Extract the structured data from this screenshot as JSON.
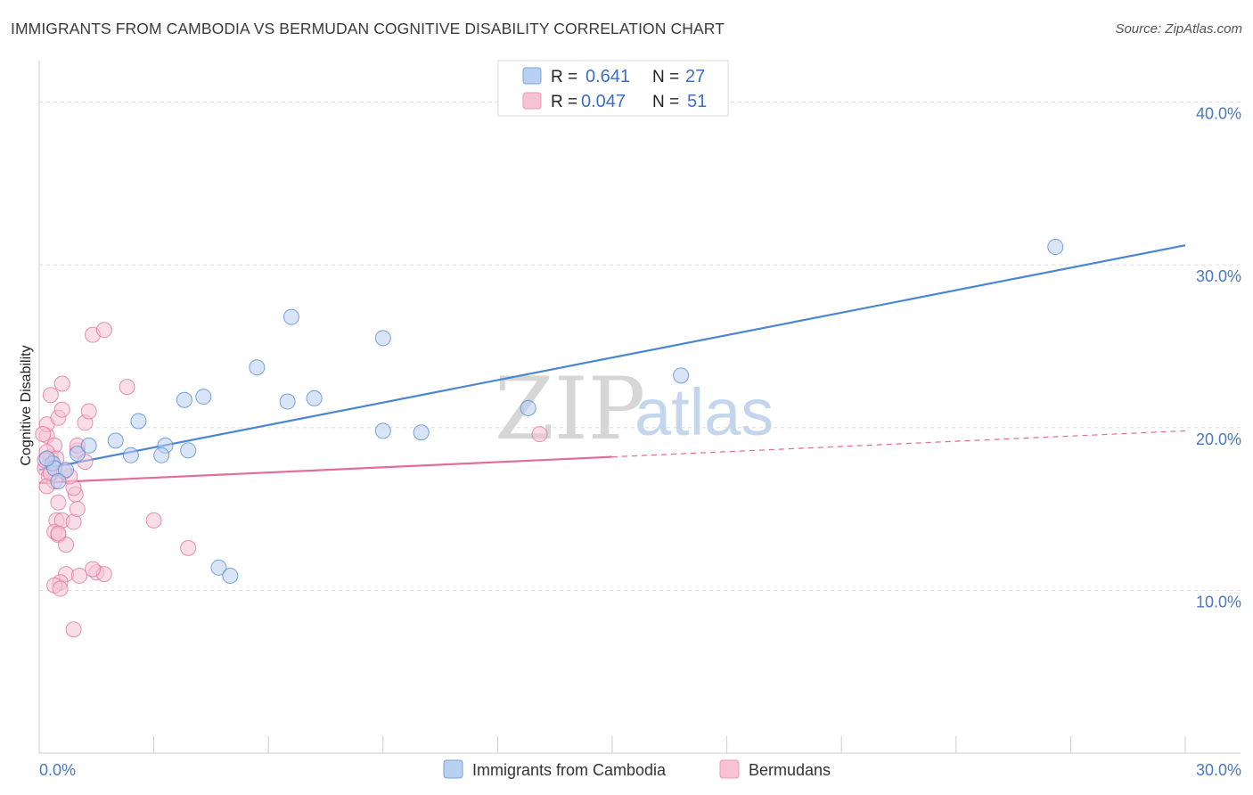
{
  "chart_data": {
    "type": "scatter",
    "title": "IMMIGRANTS FROM CAMBODIA VS BERMUDAN COGNITIVE DISABILITY CORRELATION CHART",
    "source": "Source: ZipAtlas.com",
    "xlabel": "",
    "ylabel": "Cognitive Disability",
    "xlim": [
      0,
      30
    ],
    "ylim": [
      0,
      42
    ],
    "x_tick_labels": [
      "0.0%",
      "30.0%"
    ],
    "y_ticks": [
      10,
      20,
      30,
      40
    ],
    "y_tick_labels": [
      "10.0%",
      "20.0%",
      "30.0%",
      "40.0%"
    ],
    "grid": true,
    "watermark": {
      "zip": "ZIP",
      "atlas": "atlas"
    },
    "legend_stats": [
      {
        "r_label": "R =",
        "r_value": "0.641",
        "n_label": "N =",
        "n_value": "27"
      },
      {
        "r_label": "R =",
        "r_value": "0.047",
        "n_label": "N =",
        "n_value": "51"
      }
    ],
    "series": [
      {
        "name": "Immigrants from Cambodia",
        "color": "#4a86d4",
        "fill": "#b9d0f0",
        "trend": {
          "x0": 0,
          "y0": 17.4,
          "x1": 30,
          "y1": 31.2,
          "dashed_from": null
        },
        "points": [
          [
            0.35,
            17.8
          ],
          [
            0.4,
            17.5
          ],
          [
            0.2,
            18.1
          ],
          [
            1.0,
            18.4
          ],
          [
            0.7,
            17.4
          ],
          [
            1.3,
            18.9
          ],
          [
            0.5,
            16.7
          ],
          [
            2.4,
            18.3
          ],
          [
            2.0,
            19.2
          ],
          [
            2.6,
            20.4
          ],
          [
            3.3,
            18.9
          ],
          [
            3.2,
            18.3
          ],
          [
            3.8,
            21.7
          ],
          [
            4.3,
            21.9
          ],
          [
            3.9,
            18.6
          ],
          [
            4.7,
            11.4
          ],
          [
            5.0,
            10.9
          ],
          [
            5.7,
            23.7
          ],
          [
            6.6,
            26.8
          ],
          [
            6.5,
            21.6
          ],
          [
            7.2,
            21.8
          ],
          [
            9.0,
            25.5
          ],
          [
            9.0,
            19.8
          ],
          [
            10.0,
            19.7
          ],
          [
            12.8,
            21.2
          ],
          [
            16.8,
            23.2
          ],
          [
            26.6,
            31.1
          ]
        ]
      },
      {
        "name": "Bermudans",
        "color": "#e26d9a",
        "fill": "#f6c2d4",
        "trend": {
          "x0": 0,
          "y0": 16.6,
          "x1": 30,
          "y1": 19.8,
          "dashed_from": 15
        },
        "points": [
          [
            0.2,
            19.5
          ],
          [
            0.3,
            18.2
          ],
          [
            0.15,
            17.5
          ],
          [
            0.25,
            17.0
          ],
          [
            0.4,
            16.7
          ],
          [
            0.2,
            20.2
          ],
          [
            0.3,
            22.0
          ],
          [
            0.5,
            20.6
          ],
          [
            0.6,
            21.1
          ],
          [
            0.6,
            22.7
          ],
          [
            0.4,
            18.9
          ],
          [
            0.1,
            19.6
          ],
          [
            0.2,
            18.5
          ],
          [
            0.35,
            17.8
          ],
          [
            0.2,
            16.4
          ],
          [
            0.5,
            15.4
          ],
          [
            0.45,
            14.3
          ],
          [
            0.4,
            13.6
          ],
          [
            0.5,
            13.4
          ],
          [
            0.6,
            14.3
          ],
          [
            0.7,
            12.8
          ],
          [
            0.7,
            11.0
          ],
          [
            0.55,
            10.5
          ],
          [
            0.4,
            10.3
          ],
          [
            0.55,
            10.1
          ],
          [
            0.9,
            7.6
          ],
          [
            0.9,
            14.2
          ],
          [
            0.95,
            15.9
          ],
          [
            0.9,
            16.3
          ],
          [
            1.0,
            18.6
          ],
          [
            1.0,
            18.9
          ],
          [
            1.2,
            20.3
          ],
          [
            1.2,
            17.9
          ],
          [
            1.3,
            21.0
          ],
          [
            1.5,
            11.1
          ],
          [
            1.7,
            11.0
          ],
          [
            1.4,
            11.3
          ],
          [
            1.4,
            25.7
          ],
          [
            1.7,
            26.0
          ],
          [
            2.3,
            22.5
          ],
          [
            3.0,
            14.3
          ],
          [
            3.9,
            12.6
          ],
          [
            13.1,
            19.6
          ],
          [
            0.8,
            17.0
          ],
          [
            0.3,
            17.2
          ],
          [
            1.0,
            15.0
          ],
          [
            0.15,
            18.0
          ],
          [
            0.45,
            18.1
          ],
          [
            1.05,
            10.9
          ],
          [
            0.5,
            13.5
          ],
          [
            0.65,
            17.3
          ]
        ]
      }
    ]
  }
}
